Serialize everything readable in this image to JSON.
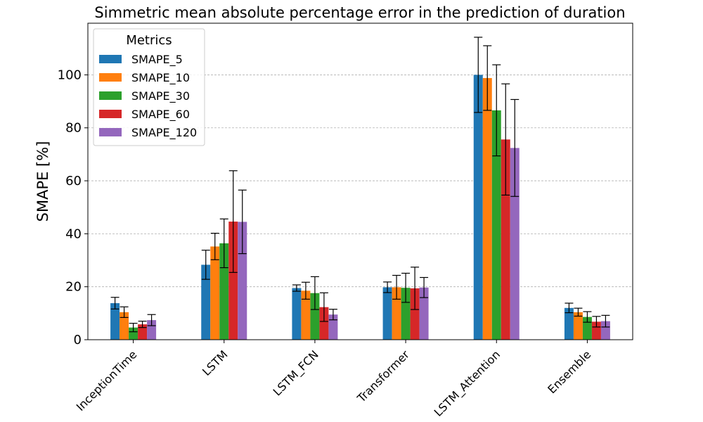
{
  "chart_data": {
    "type": "bar",
    "title": "Simmetric mean absolute percentage error in the prediction of duration",
    "xlabel": "",
    "ylabel": "SMAPE [%]",
    "ylim": [
      0,
      119.5
    ],
    "yticks": [
      0,
      20,
      40,
      60,
      80,
      100
    ],
    "grid": "y-dashed",
    "legend": {
      "title": "Metrics",
      "placement": "top-left"
    },
    "categories": [
      "InceptionTime",
      "LSTM",
      "LSTM_FCN",
      "Transformer",
      "LSTM_Attention",
      "Ensemble"
    ],
    "series": [
      {
        "name": "SMAPE_5",
        "color": "#1f77b4",
        "values": [
          13.8,
          28.3,
          19.5,
          19.8,
          100.0,
          12.0
        ],
        "errors": [
          2.2,
          5.5,
          1.2,
          2.0,
          14.2,
          1.8
        ]
      },
      {
        "name": "SMAPE_10",
        "color": "#ff7f0e",
        "values": [
          10.4,
          35.2,
          18.5,
          19.8,
          98.8,
          10.4
        ],
        "errors": [
          2.0,
          5.0,
          3.2,
          4.5,
          12.2,
          1.5
        ]
      },
      {
        "name": "SMAPE_30",
        "color": "#2ca02c",
        "values": [
          4.6,
          36.4,
          17.6,
          19.6,
          86.6,
          8.6
        ],
        "errors": [
          1.6,
          9.2,
          6.2,
          5.5,
          17.2,
          2.0
        ]
      },
      {
        "name": "SMAPE_60",
        "color": "#d62728",
        "values": [
          5.8,
          44.6,
          12.3,
          19.4,
          75.6,
          6.8
        ],
        "errors": [
          1.2,
          19.2,
          5.4,
          8.0,
          21.0,
          2.0
        ]
      },
      {
        "name": "SMAPE_120",
        "color": "#9467bd",
        "values": [
          7.4,
          44.5,
          9.5,
          19.7,
          72.4,
          7.0
        ],
        "errors": [
          2.1,
          12.0,
          2.0,
          3.8,
          18.3,
          2.2
        ]
      }
    ]
  }
}
